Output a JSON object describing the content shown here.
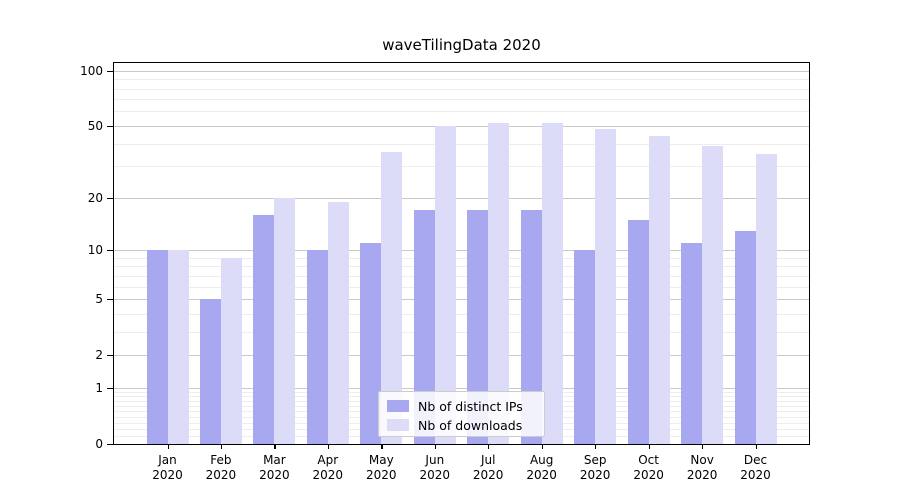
{
  "chart_data": {
    "type": "bar",
    "title": "waveTilingData 2020",
    "x_categories": [
      "Jan",
      "Feb",
      "Mar",
      "Apr",
      "May",
      "Jun",
      "Jul",
      "Aug",
      "Sep",
      "Oct",
      "Nov",
      "Dec"
    ],
    "x_year": "2020",
    "series": [
      {
        "name": "Nb of distinct IPs",
        "color": "#a8a8f0",
        "values": [
          10,
          5,
          16,
          10,
          11,
          17,
          17,
          17,
          10,
          15,
          11,
          13
        ]
      },
      {
        "name": "Nb of downloads",
        "color": "#dcdcf8",
        "values": [
          10,
          9,
          20,
          19,
          36,
          50,
          52,
          52,
          48,
          44,
          39,
          35
        ]
      }
    ],
    "y_scale": "symlog",
    "y_ticks": [
      0,
      1,
      2,
      5,
      10,
      20,
      50,
      100
    ],
    "y_minor_ticks": [
      0.1,
      0.2,
      0.3,
      0.4,
      0.5,
      0.6,
      0.7,
      0.8,
      0.9,
      3,
      4,
      6,
      7,
      8,
      9,
      30,
      40,
      60,
      70,
      80,
      90
    ],
    "ylim": [
      0,
      110
    ],
    "grid": true,
    "legend_position": "lower-center",
    "colors": {
      "major_grid": "#c9c9c9",
      "minor_grid": "#ededed",
      "axis": "#000000",
      "background": "#ffffff"
    }
  }
}
